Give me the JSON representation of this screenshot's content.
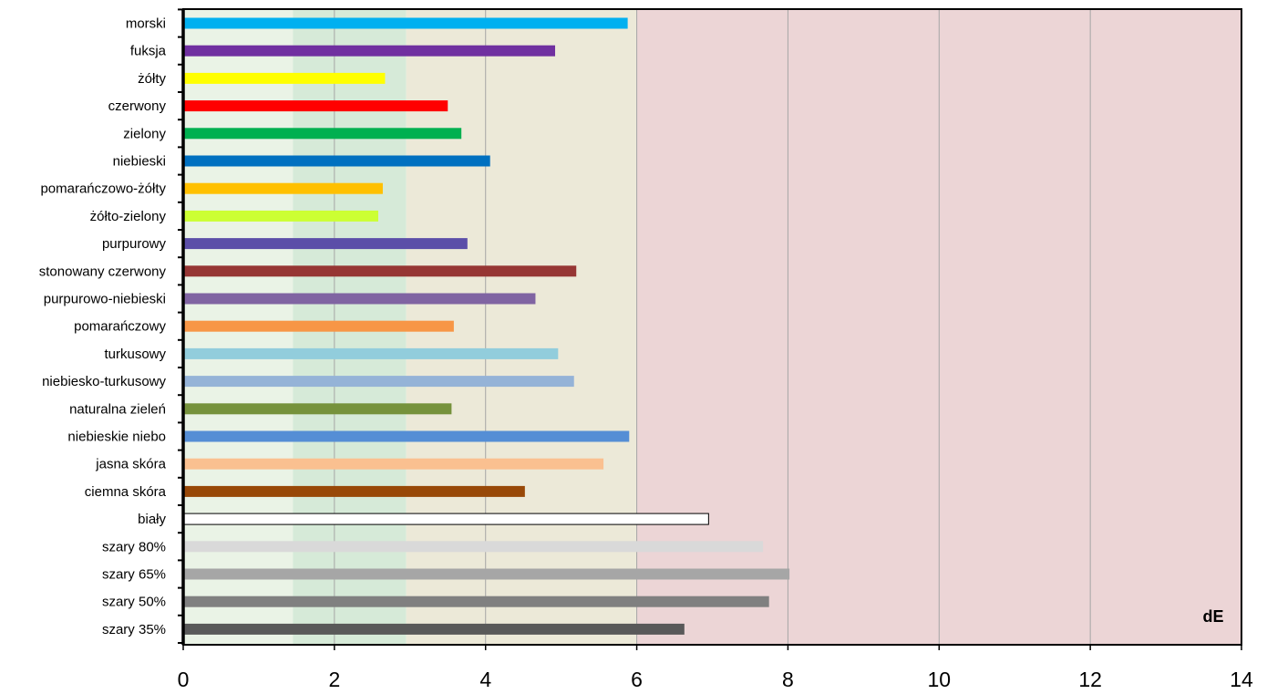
{
  "chart_data": {
    "type": "bar",
    "orientation": "horizontal",
    "unit_label": "dE",
    "xlim": [
      0,
      14
    ],
    "x_ticks": [
      "0",
      "2",
      "4",
      "6",
      "8",
      "10",
      "12",
      "14"
    ],
    "grid": "vertical",
    "bands": [
      {
        "from": 0,
        "to": 1.45,
        "color": "#eaf3e6"
      },
      {
        "from": 1.45,
        "to": 2.95,
        "color": "#d6ead8"
      },
      {
        "from": 2.95,
        "to": 6,
        "color": "#ece9d8"
      },
      {
        "from": 6,
        "to": 14,
        "color": "#ecd5d6"
      }
    ],
    "categories": [
      "morski",
      "fuksja",
      "żółty",
      "czerwony",
      "zielony",
      "niebieski",
      "pomarańczowo-żółty",
      "żółto-zielony",
      "purpurowy",
      "stonowany czerwony",
      "purpurowo-niebieski",
      "pomarańczowy",
      "turkusowy",
      "niebiesko-turkusowy",
      "naturalna zieleń",
      "niebieskie niebo",
      "jasna skóra",
      "ciemna skóra",
      "biały",
      "szary 80%",
      "szary 65%",
      "szary 50%",
      "szary 35%"
    ],
    "values": [
      5.88,
      4.92,
      2.67,
      3.5,
      3.68,
      4.06,
      2.64,
      2.58,
      3.76,
      5.2,
      4.66,
      3.58,
      4.96,
      5.17,
      3.55,
      5.9,
      5.56,
      4.52,
      6.95,
      7.67,
      8.02,
      7.75,
      6.63
    ],
    "colors": [
      "#00b0f0",
      "#7030a0",
      "#ffff00",
      "#ff0000",
      "#00b050",
      "#0070c0",
      "#ffc000",
      "#ccff33",
      "#5b4ea8",
      "#963634",
      "#8064a2",
      "#f79646",
      "#92cddc",
      "#95b3d7",
      "#76923c",
      "#558ed5",
      "#fac090",
      "#984807",
      "#ffffff",
      "#d9d9d9",
      "#a6a6a6",
      "#808080",
      "#595959"
    ]
  }
}
